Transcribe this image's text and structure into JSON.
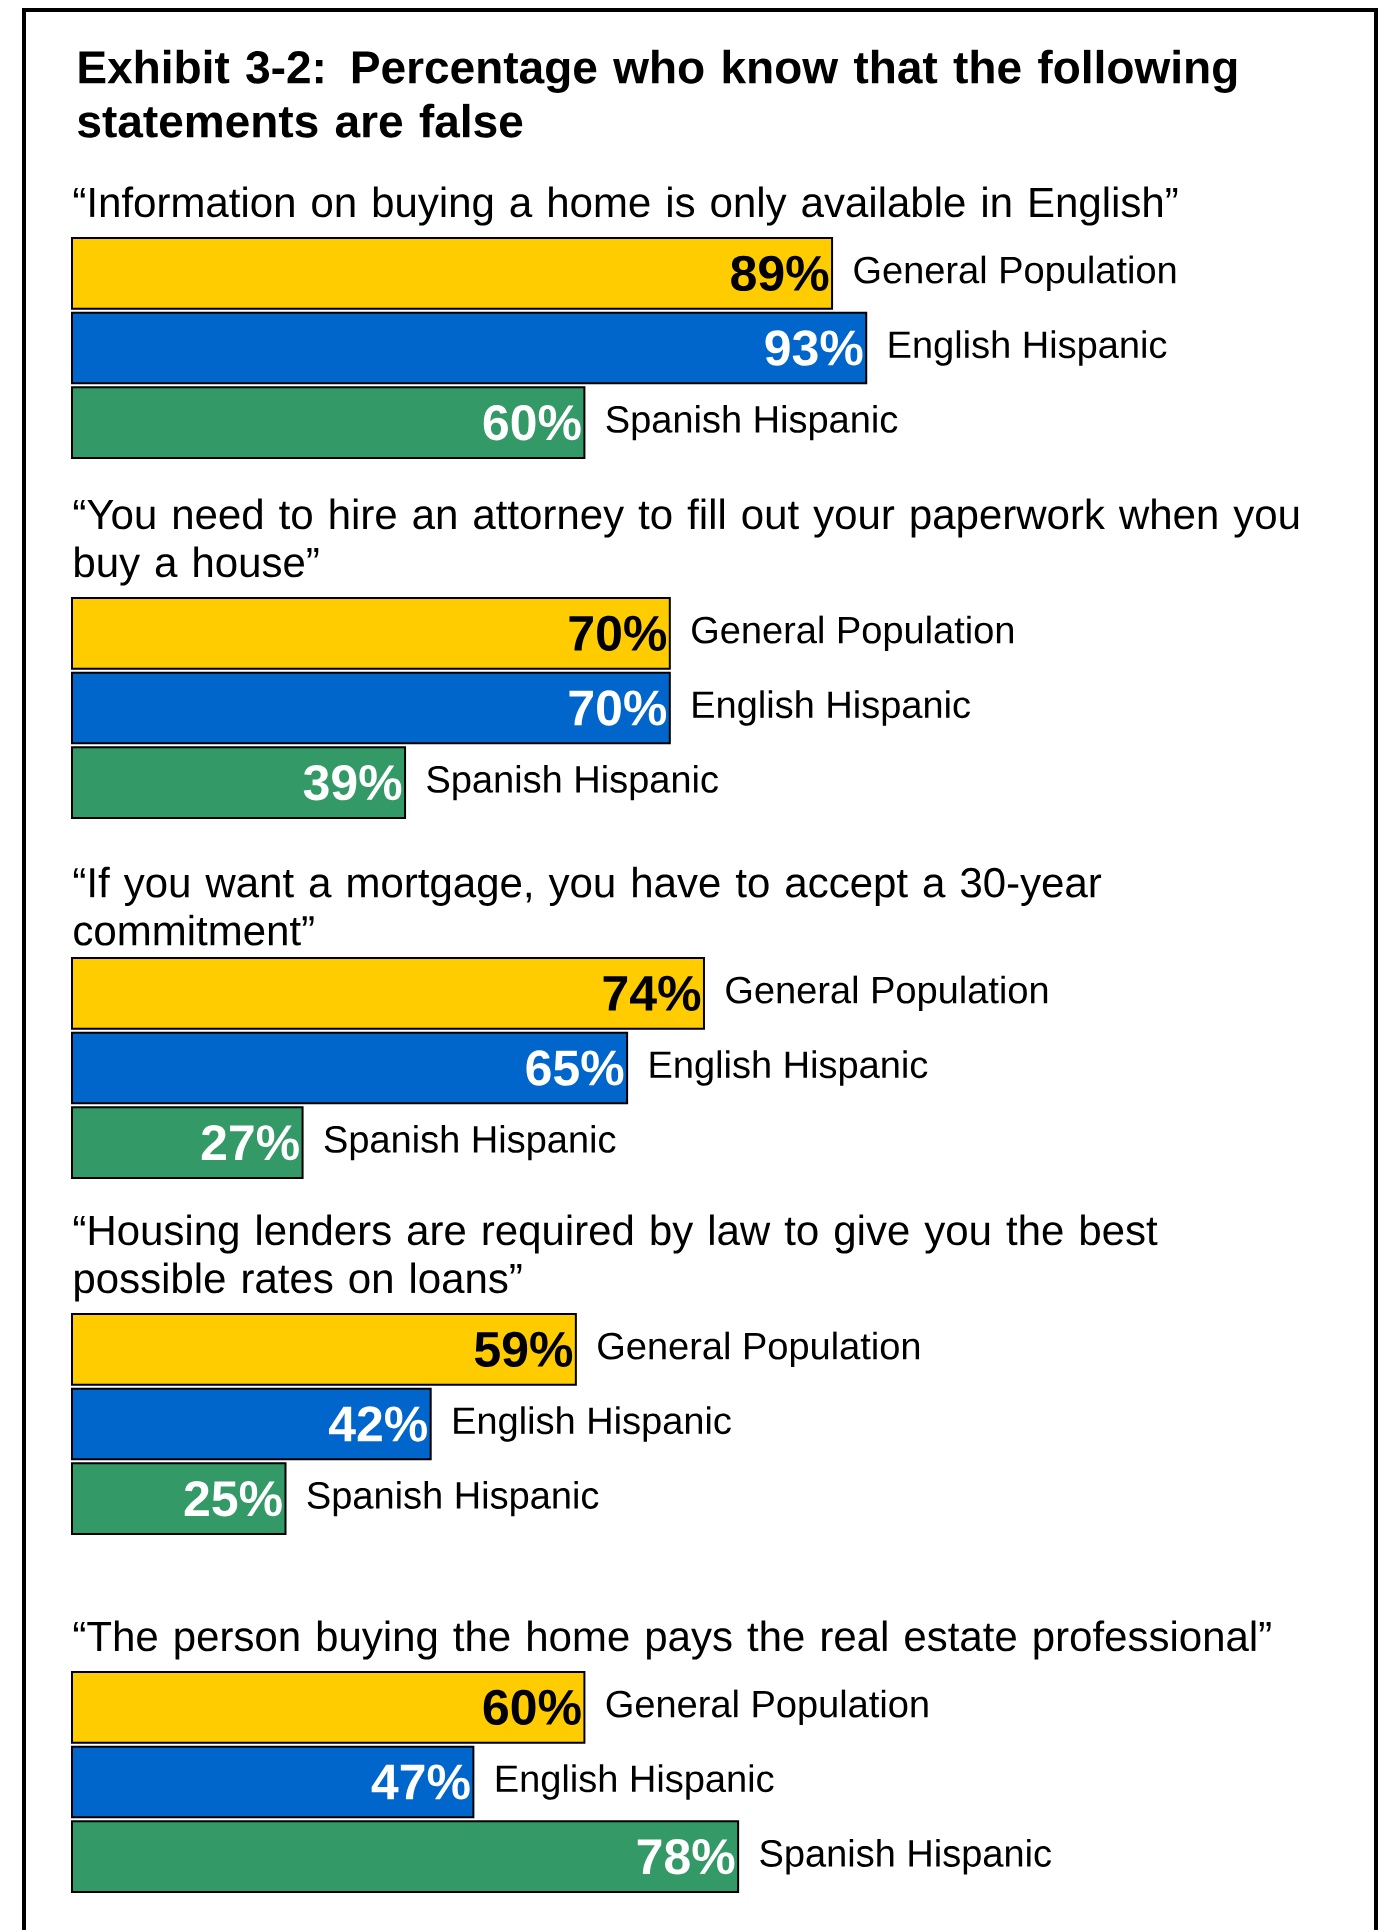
{
  "chart_data": [
    {
      "type": "bar",
      "orientation": "horizontal",
      "title": "Exhibit 3-2: Percentage who know that the following statements are false",
      "subtitle": "“Information on buying a home is only available in English”",
      "categories": [
        null
      ],
      "series": [
        {
          "name": "General Population",
          "color": "#ffcc00",
          "values": [
            89
          ],
          "value_labels": [
            "89%"
          ]
        },
        {
          "name": "English Hispanic",
          "color": "#0066cc",
          "values": [
            93
          ],
          "value_labels": [
            "93%"
          ]
        },
        {
          "name": "Spanish Hispanic",
          "color": "#339966",
          "values": [
            60
          ],
          "value_labels": [
            "60%"
          ]
        }
      ]
    },
    {
      "type": "bar",
      "orientation": "horizontal",
      "subtitle": "“You need to hire an attorney to fill out your paperwork when you buy a house”",
      "categories": [
        null
      ],
      "series": [
        {
          "name": "General Population",
          "color": "#ffcc00",
          "values": [
            70
          ],
          "value_labels": [
            "70%"
          ]
        },
        {
          "name": "English Hispanic",
          "color": "#0066cc",
          "values": [
            70
          ],
          "value_labels": [
            "70%"
          ]
        },
        {
          "name": "Spanish Hispanic",
          "color": "#339966",
          "values": [
            39
          ],
          "value_labels": [
            "39%"
          ]
        }
      ]
    },
    {
      "type": "bar",
      "orientation": "horizontal",
      "subtitle": "“If you want a mortgage, you have to accept a 30-year commitment”",
      "categories": [
        null
      ],
      "series": [
        {
          "name": "General Population",
          "color": "#ffcc00",
          "values": [
            74
          ],
          "value_labels": [
            "74%"
          ]
        },
        {
          "name": "English Hispanic",
          "color": "#0066cc",
          "values": [
            65
          ],
          "value_labels": [
            "65%"
          ]
        },
        {
          "name": "Spanish Hispanic",
          "color": "#339966",
          "values": [
            27
          ],
          "value_labels": [
            "27%"
          ]
        }
      ]
    },
    {
      "type": "bar",
      "orientation": "horizontal",
      "subtitle": "“Housing lenders are required by law to give you the best possible rates on loans”",
      "categories": [
        null
      ],
      "series": [
        {
          "name": "General Population",
          "color": "#ffcc00",
          "values": [
            59
          ],
          "value_labels": [
            "59%"
          ]
        },
        {
          "name": "English Hispanic",
          "color": "#0066cc",
          "values": [
            42
          ],
          "value_labels": [
            "42%"
          ]
        },
        {
          "name": "Spanish Hispanic",
          "color": "#339966",
          "values": [
            25
          ],
          "value_labels": [
            "25%"
          ]
        }
      ]
    },
    {
      "type": "bar",
      "orientation": "horizontal",
      "subtitle": "“The person buying the home pays the real estate professional”",
      "categories": [
        null
      ],
      "series": [
        {
          "name": "General Population",
          "color": "#ffcc00",
          "values": [
            60
          ],
          "value_labels": [
            "60%"
          ]
        },
        {
          "name": "English Hispanic",
          "color": "#0066cc",
          "values": [
            47
          ],
          "value_labels": [
            "47%"
          ]
        },
        {
          "name": "Spanish Hispanic",
          "color": "#339966",
          "values": [
            78
          ],
          "value_labels": [
            "78%"
          ]
        }
      ]
    }
  ]
}
